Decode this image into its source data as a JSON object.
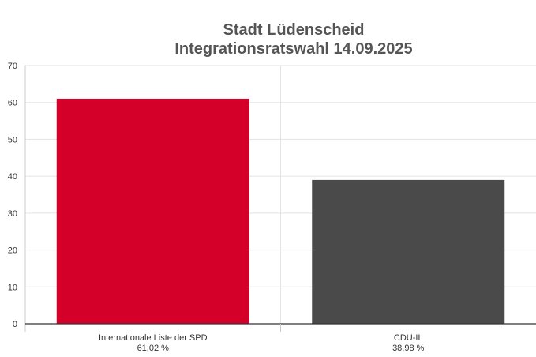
{
  "chart_data": {
    "type": "bar",
    "title": [
      "Stadt Lüdenscheid",
      "Integrationsratswahl 14.09.2025"
    ],
    "xlabel": "",
    "ylabel": "",
    "ylim": [
      0,
      70
    ],
    "yticks": [
      0,
      10,
      20,
      30,
      40,
      50,
      60,
      70
    ],
    "categories": [
      "Internationale Liste der SPD",
      "CDU-IL"
    ],
    "values": [
      61.02,
      38.98
    ],
    "value_labels": [
      "61,02 %",
      "38,98 %"
    ],
    "colors": [
      "#d50029",
      "#4a4a4a"
    ],
    "grid": true,
    "legend": "none"
  }
}
